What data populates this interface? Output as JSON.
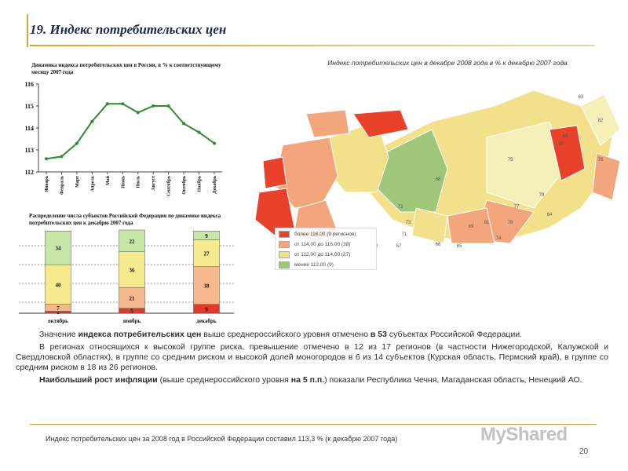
{
  "slide": {
    "title": "19. Индекс потребительских цен",
    "page_number": "20",
    "footer": "Индекс потребительских  цен за 2008 год в Российской Федерации составил 113,3 % (к декабрю 2007 года)",
    "watermark": "MyShared"
  },
  "texts": {
    "p1_a": "Значение ",
    "p1_b": "индекса потребительских цен",
    "p1_c": " выше среднероссийского уровня отмечено ",
    "p1_d": "в 53",
    "p1_e": " субъектах Российской Федерации.",
    "p2": "В регионах относящихся к высокой группе риска, превышение отмечено в 12 из 17 регионов (в частности Нижегородской, Калужской и Свердловской областях), в группе со средним риском и высокой долей моногородов в 6 из 14 субъектов (Курская область, Пермский край), в группе со средним риском в 18 из 26 регионов.",
    "p3_a": "Наибольший рост инфляции",
    "p3_b": " (выше среднероссийского уровня ",
    "p3_c": "на 5 п.п.",
    "p3_d": ") показали Республика Чечня, Магаданская область, Ненецкий АО."
  },
  "map": {
    "title": "Индекс потребительских цен в декабре 2008 года в % к декабрю 2007 года",
    "legend": [
      {
        "label": "более 116,00  (9 регионов)",
        "color": "#e8432a"
      },
      {
        "label": "от 114,00 до 116,00  (38)",
        "color": "#f3a57b"
      },
      {
        "label": "от 112,00 до 114,00  (27)",
        "color": "#f3e08a"
      },
      {
        "label": "менее 112,00  (9)",
        "color": "#9ec77a"
      }
    ],
    "region_labels": [
      "63",
      "69",
      "80",
      "76",
      "82",
      "75",
      "68",
      "72",
      "73",
      "71",
      "67",
      "66",
      "65",
      "74",
      "78",
      "70",
      "81",
      "77",
      "79",
      "64",
      "69"
    ]
  },
  "chart_data": [
    {
      "type": "line",
      "title": "Динамика индекса потребительских цен в России, в % к соответствующему месяцу 2007 года",
      "categories": [
        "Январь",
        "Февраль",
        "Март",
        "Апрель",
        "Май",
        "Июнь",
        "Июль",
        "Август",
        "Сентябрь",
        "Октябрь",
        "Ноябрь",
        "Декабрь"
      ],
      "values": [
        112.6,
        112.7,
        113.3,
        114.3,
        115.1,
        115.1,
        114.7,
        115.0,
        115.0,
        114.2,
        113.8,
        113.3
      ],
      "yticks": [
        112,
        113,
        114,
        115,
        116
      ],
      "ylim": [
        112,
        116
      ],
      "color": "#2e8b2e",
      "grid": false
    },
    {
      "type": "bar",
      "stacked": true,
      "title": "Распределение числа субъектов Российской Федерации по динамике индекса потребительских цен к декабрю 2007 года",
      "categories": [
        "октябрь",
        "ноябрь",
        "декабрь"
      ],
      "series": [
        {
          "values": [
            2,
            5,
            9
          ],
          "color": "#e03a2a"
        },
        {
          "values": [
            7,
            21,
            38
          ],
          "color": "#f5b98d"
        },
        {
          "values": [
            40,
            36,
            27
          ],
          "color": "#f6ea8e"
        },
        {
          "values": [
            34,
            22,
            9
          ],
          "color": "#c8e6a8"
        }
      ],
      "grid": true
    }
  ]
}
